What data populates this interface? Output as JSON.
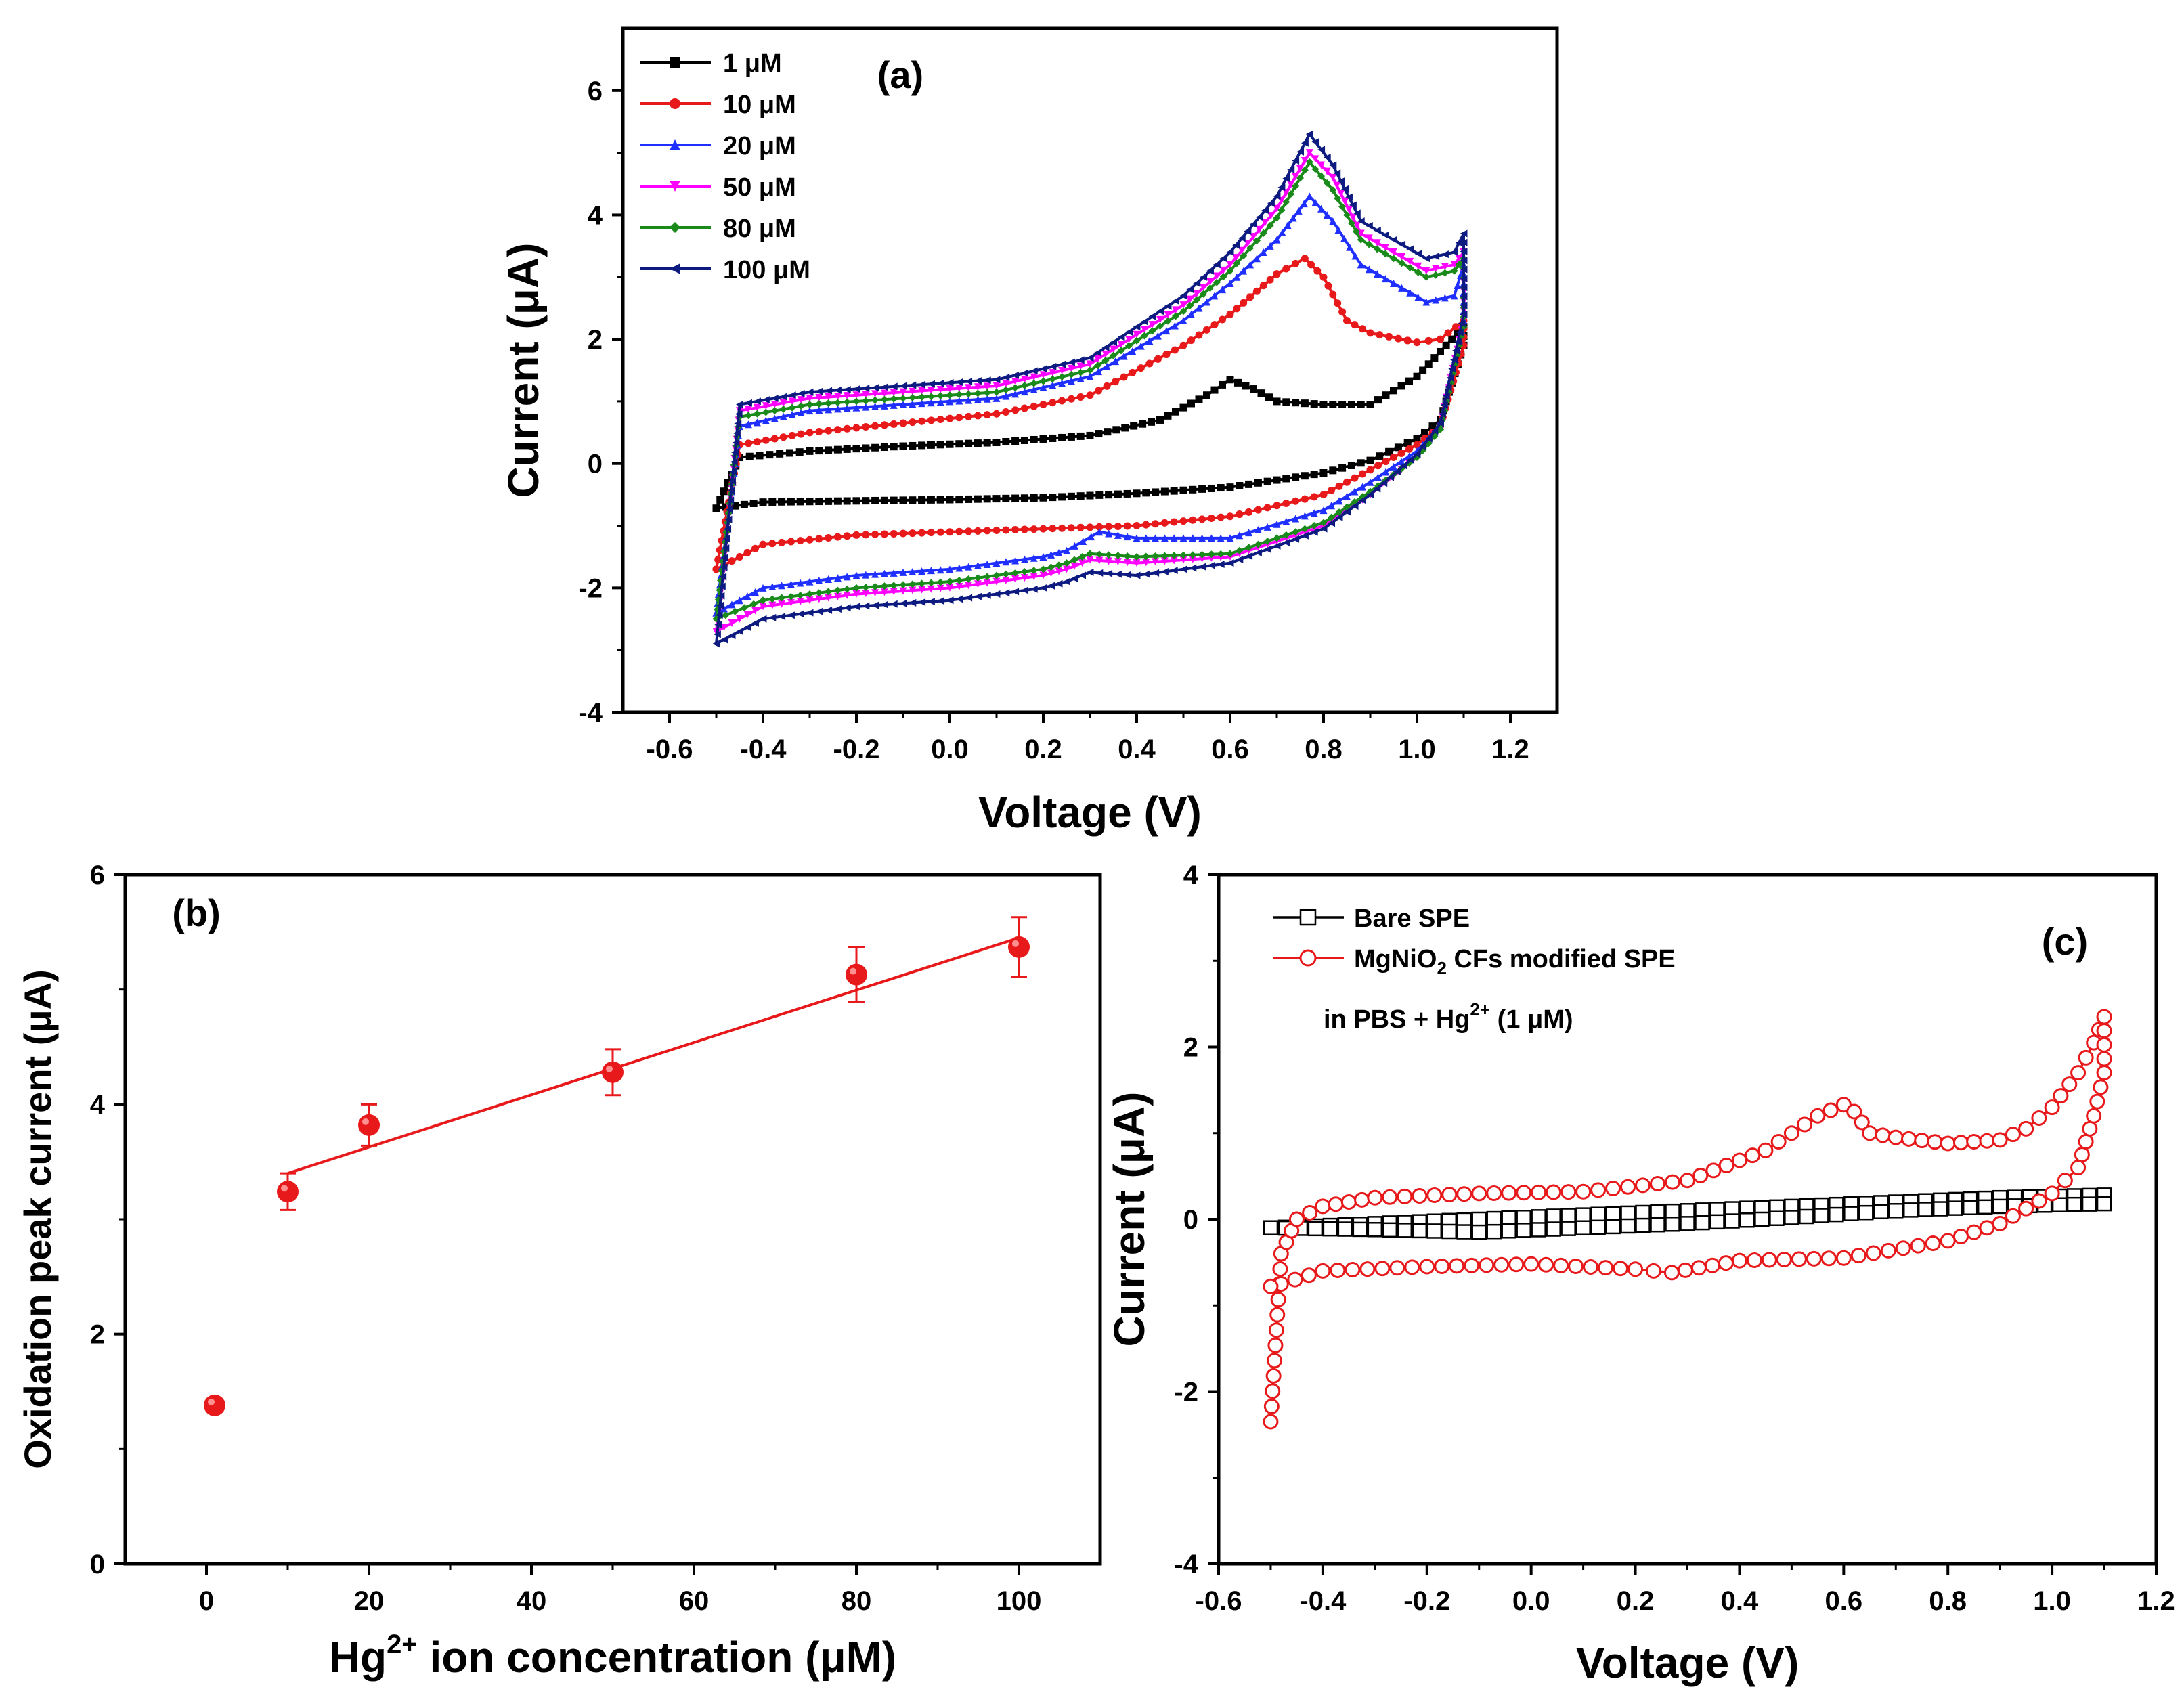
{
  "figure_caption": "",
  "chart_data": [
    {
      "panel": "(a)",
      "type": "line",
      "title": "",
      "panel_label": "(a)",
      "xlabel": "Voltage (V)",
      "ylabel": "Current (μA)",
      "xlim": [
        -0.7,
        1.3
      ],
      "ylim": [
        -4,
        7
      ],
      "xticks": [
        -0.6,
        -0.4,
        -0.2,
        0.0,
        0.2,
        0.4,
        0.6,
        0.8,
        1.0,
        1.2
      ],
      "yticks": [
        -4,
        -2,
        0,
        2,
        4,
        6
      ],
      "xtick_labels": [
        "-0.6",
        "-0.4",
        "-0.2",
        "0.0",
        "0.2",
        "0.4",
        "0.6",
        "0.8",
        "1.0",
        "1.2"
      ],
      "ytick_labels": [
        "-4",
        "-2",
        "0",
        "2",
        "4",
        "6"
      ],
      "legend_position": "top-left",
      "series": [
        {
          "name": "1 μM",
          "color": "#000000",
          "marker": "square",
          "x": [
            -0.5,
            -0.45,
            -0.3,
            -0.1,
            0.1,
            0.3,
            0.45,
            0.55,
            0.6,
            0.65,
            0.7,
            0.8,
            0.9,
            1.0,
            1.05,
            1.1,
            1.1,
            1.05,
            1.0,
            0.9,
            0.8,
            0.6,
            0.4,
            0.2,
            0.0,
            -0.2,
            -0.4,
            -0.5
          ],
          "y": [
            -0.72,
            0.1,
            0.2,
            0.28,
            0.34,
            0.45,
            0.7,
            1.1,
            1.35,
            1.2,
            1.0,
            0.95,
            0.95,
            1.4,
            1.8,
            2.2,
            1.9,
            0.7,
            0.4,
            0.05,
            -0.15,
            -0.38,
            -0.48,
            -0.55,
            -0.58,
            -0.6,
            -0.62,
            -0.72
          ]
        },
        {
          "name": "10 μM",
          "color": "#e8191b",
          "marker": "circle",
          "x": [
            -0.5,
            -0.45,
            -0.3,
            -0.1,
            0.1,
            0.3,
            0.5,
            0.6,
            0.7,
            0.76,
            0.8,
            0.85,
            0.9,
            1.0,
            1.05,
            1.1,
            1.1,
            1.05,
            1.0,
            0.9,
            0.8,
            0.6,
            0.4,
            0.2,
            0.0,
            -0.2,
            -0.4,
            -0.5
          ],
          "y": [
            -1.7,
            0.3,
            0.5,
            0.65,
            0.8,
            1.1,
            1.9,
            2.4,
            3.05,
            3.3,
            3.0,
            2.3,
            2.1,
            1.95,
            2.0,
            2.3,
            1.9,
            0.6,
            0.3,
            -0.1,
            -0.5,
            -0.85,
            -1.0,
            -1.05,
            -1.1,
            -1.15,
            -1.3,
            -1.7
          ]
        },
        {
          "name": "20 μM",
          "color": "#1f2fff",
          "marker": "triangle-up",
          "x": [
            -0.5,
            -0.45,
            -0.3,
            -0.1,
            0.1,
            0.3,
            0.5,
            0.6,
            0.7,
            0.77,
            0.82,
            0.88,
            0.95,
            1.02,
            1.08,
            1.1,
            1.1,
            1.05,
            1.0,
            0.9,
            0.8,
            0.6,
            0.4,
            0.32,
            0.25,
            0.2,
            0.0,
            -0.2,
            -0.4,
            -0.5
          ],
          "y": [
            -2.4,
            0.6,
            0.85,
            0.95,
            1.05,
            1.4,
            2.3,
            2.9,
            3.6,
            4.3,
            3.9,
            3.2,
            2.9,
            2.6,
            2.7,
            3.2,
            2.3,
            0.6,
            0.2,
            -0.3,
            -0.75,
            -1.2,
            -1.2,
            -1.1,
            -1.4,
            -1.5,
            -1.7,
            -1.8,
            -2.0,
            -2.4
          ]
        },
        {
          "name": "50 μM",
          "color": "#ff00ff",
          "marker": "triangle-down",
          "x": [
            -0.5,
            -0.45,
            -0.3,
            -0.1,
            0.1,
            0.3,
            0.5,
            0.6,
            0.7,
            0.77,
            0.82,
            0.88,
            0.95,
            1.02,
            1.08,
            1.1,
            1.1,
            1.05,
            1.0,
            0.9,
            0.8,
            0.6,
            0.4,
            0.3,
            0.25,
            0.2,
            0.0,
            -0.2,
            -0.4,
            -0.5
          ],
          "y": [
            -2.7,
            0.85,
            1.05,
            1.15,
            1.25,
            1.6,
            2.55,
            3.2,
            4.1,
            5.0,
            4.6,
            3.7,
            3.4,
            3.1,
            3.2,
            3.4,
            2.3,
            0.6,
            0.1,
            -0.5,
            -1.0,
            -1.5,
            -1.6,
            -1.55,
            -1.7,
            -1.8,
            -2.0,
            -2.1,
            -2.3,
            -2.7
          ]
        },
        {
          "name": "80 μM",
          "color": "#1a8a1a",
          "marker": "diamond",
          "x": [
            -0.5,
            -0.45,
            -0.3,
            -0.1,
            0.1,
            0.3,
            0.5,
            0.6,
            0.7,
            0.77,
            0.82,
            0.88,
            0.95,
            1.02,
            1.08,
            1.1,
            1.1,
            1.05,
            1.0,
            0.9,
            0.8,
            0.6,
            0.4,
            0.3,
            0.25,
            0.2,
            0.0,
            -0.2,
            -0.4,
            -0.5
          ],
          "y": [
            -2.5,
            0.75,
            0.95,
            1.05,
            1.15,
            1.5,
            2.45,
            3.1,
            3.95,
            4.85,
            4.4,
            3.6,
            3.3,
            3.0,
            3.1,
            3.3,
            2.2,
            0.55,
            0.1,
            -0.45,
            -0.95,
            -1.45,
            -1.5,
            -1.45,
            -1.6,
            -1.7,
            -1.9,
            -2.0,
            -2.2,
            -2.5
          ]
        },
        {
          "name": "100 μM",
          "color": "#0d1a80",
          "marker": "triangle-left",
          "x": [
            -0.5,
            -0.45,
            -0.3,
            -0.1,
            0.1,
            0.3,
            0.5,
            0.6,
            0.7,
            0.77,
            0.82,
            0.88,
            0.95,
            1.02,
            1.08,
            1.1,
            1.1,
            1.05,
            1.0,
            0.9,
            0.8,
            0.6,
            0.4,
            0.3,
            0.25,
            0.2,
            0.0,
            -0.2,
            -0.4,
            -0.5
          ],
          "y": [
            -2.9,
            0.95,
            1.15,
            1.25,
            1.35,
            1.7,
            2.7,
            3.4,
            4.3,
            5.3,
            4.8,
            3.9,
            3.6,
            3.3,
            3.4,
            3.7,
            2.4,
            0.65,
            0.15,
            -0.5,
            -1.05,
            -1.6,
            -1.8,
            -1.75,
            -1.9,
            -2.0,
            -2.2,
            -2.3,
            -2.5,
            -2.9
          ]
        }
      ]
    },
    {
      "panel": "(b)",
      "type": "scatter",
      "title": "",
      "panel_label": "(b)",
      "xlabel_main": "Hg",
      "xlabel_sup": "2+",
      "xlabel_rest": " ion concentration (μM)",
      "ylabel": "Oxidation peak current (μA)",
      "xlim": [
        -10,
        110
      ],
      "ylim": [
        0,
        6
      ],
      "xticks": [
        0,
        20,
        40,
        60,
        80,
        100
      ],
      "yticks": [
        0,
        2,
        4,
        6
      ],
      "xtick_labels": [
        "0",
        "20",
        "40",
        "60",
        "80",
        "100"
      ],
      "ytick_labels": [
        "0",
        "2",
        "4",
        "6"
      ],
      "series": [
        {
          "name": "Oxidation peak current",
          "color": "#e8191b",
          "x": [
            1,
            10,
            20,
            50,
            80,
            100
          ],
          "y": [
            1.38,
            3.24,
            3.82,
            4.28,
            5.13,
            5.37
          ],
          "error": [
            0.0,
            0.16,
            0.18,
            0.2,
            0.24,
            0.26
          ]
        }
      ],
      "fit_line": {
        "x": [
          10,
          100
        ],
        "y": [
          3.4,
          5.45
        ],
        "color": "#e8191b"
      }
    },
    {
      "panel": "(c)",
      "type": "line",
      "title": "",
      "panel_label": "(c)",
      "xlabel": "Voltage (V)",
      "ylabel": "Current (μA)",
      "xlim": [
        -0.6,
        1.2
      ],
      "ylim": [
        -4,
        4
      ],
      "xticks": [
        -0.6,
        -0.4,
        -0.2,
        0.0,
        0.2,
        0.4,
        0.6,
        0.8,
        1.0,
        1.2
      ],
      "yticks": [
        -4,
        -2,
        0,
        2,
        4
      ],
      "xtick_labels": [
        "-0.6",
        "-0.4",
        "-0.2",
        "0.0",
        "0.2",
        "0.4",
        "0.6",
        "0.8",
        "1.0",
        "1.2"
      ],
      "ytick_labels": [
        "-4",
        "-2",
        "0",
        "2",
        "4"
      ],
      "legend_position": "top-left",
      "annotation_main": "in PBS + Hg",
      "annotation_sup": "2+",
      "annotation_rest": " (1 μM)",
      "series": [
        {
          "name": "Bare SPE",
          "color": "#000000",
          "marker": "open-square",
          "x": [
            -0.5,
            -0.3,
            -0.1,
            0.1,
            0.3,
            0.5,
            0.7,
            0.9,
            1.1,
            1.1,
            0.9,
            0.7,
            0.5,
            0.3,
            0.1,
            -0.1,
            -0.3,
            -0.5
          ],
          "y": [
            -0.1,
            -0.05,
            0.0,
            0.05,
            0.1,
            0.15,
            0.2,
            0.25,
            0.28,
            0.18,
            0.15,
            0.1,
            0.02,
            -0.05,
            -0.1,
            -0.15,
            -0.12,
            -0.1
          ]
        },
        {
          "name": "MgNiO2 CFs modified SPE",
          "name_main": "MgNiO",
          "name_sub": "2",
          "name_rest": " CFs modified SPE",
          "color": "#e8191b",
          "marker": "open-circle",
          "x": [
            -0.5,
            -0.48,
            -0.45,
            -0.4,
            -0.3,
            -0.1,
            0.1,
            0.3,
            0.45,
            0.55,
            0.6,
            0.62,
            0.65,
            0.7,
            0.8,
            0.9,
            0.95,
            1.0,
            1.05,
            1.08,
            1.1,
            1.1,
            1.08,
            1.05,
            1.0,
            0.9,
            0.8,
            0.6,
            0.4,
            0.27,
            0.2,
            0.0,
            -0.2,
            -0.4,
            -0.48,
            -0.5
          ],
          "y": [
            -2.35,
            -0.4,
            0.0,
            0.15,
            0.25,
            0.3,
            0.32,
            0.45,
            0.8,
            1.2,
            1.33,
            1.25,
            1.0,
            0.95,
            0.88,
            0.92,
            1.05,
            1.3,
            1.7,
            2.05,
            2.35,
            1.7,
            1.2,
            0.6,
            0.3,
            -0.05,
            -0.25,
            -0.45,
            -0.48,
            -0.62,
            -0.58,
            -0.52,
            -0.55,
            -0.6,
            -0.75,
            -0.78
          ]
        }
      ]
    }
  ]
}
